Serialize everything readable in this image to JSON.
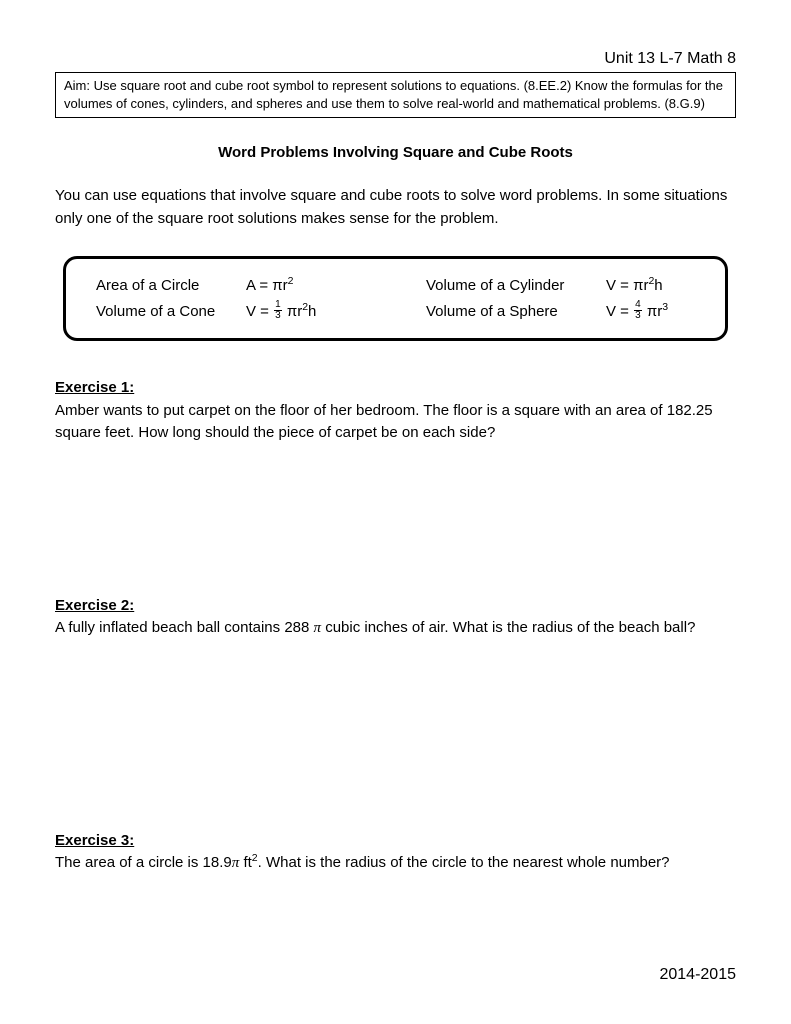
{
  "header": {
    "unit_line": "Unit 13 L-7 Math 8"
  },
  "aim": "Aim:  Use square root and cube root symbol to represent solutions to equations. (8.EE.2) Know the formulas for the volumes of cones, cylinders, and spheres and use them to solve real-world and mathematical problems. (8.G.9)",
  "title": "Word Problems Involving Square and Cube Roots",
  "intro": "You can use equations that involve square and cube roots to solve word problems.  In some situations only one of the square root solutions makes sense for the problem.",
  "formulas": {
    "row1": {
      "label_a": "Area of a Circle",
      "formula_a_html": "A = πr<sup>2</sup>",
      "label_b": "Volume of a Cylinder",
      "formula_b_html": "V = πr<sup>2</sup>h"
    },
    "row2": {
      "label_a": "Volume of a Cone",
      "formula_a_html": "V = <span class=\"frac\"><span class=\"n\">1</span><span class=\"d\">3</span></span> πr<sup>2</sup>h",
      "label_b": "Volume of a Sphere",
      "formula_b_html": "V = <span class=\"frac\"><span class=\"n\">4</span><span class=\"d\">3</span></span> πr<sup>3</sup>"
    }
  },
  "exercises": [
    {
      "label": "Exercise 1:",
      "text": "Amber wants to put carpet on the floor of her bedroom.  The floor is a square with an area of 182.25 square feet.  How long should the piece of carpet be on each side?",
      "gap": 150
    },
    {
      "label": "Exercise 2:",
      "text_html": "A fully inflated beach ball contains 288 <span class=\"pi\">π</span> cubic inches of air.  What is the radius of the beach ball?",
      "gap": 190
    },
    {
      "label": "Exercise 3:",
      "text_html": "The area of a circle is 18.9<span class=\"pi\">π</span> ft<sup>2</sup>.  What is the radius of the circle to the nearest whole number?",
      "gap": 0
    }
  ],
  "footer": "2014-2015"
}
